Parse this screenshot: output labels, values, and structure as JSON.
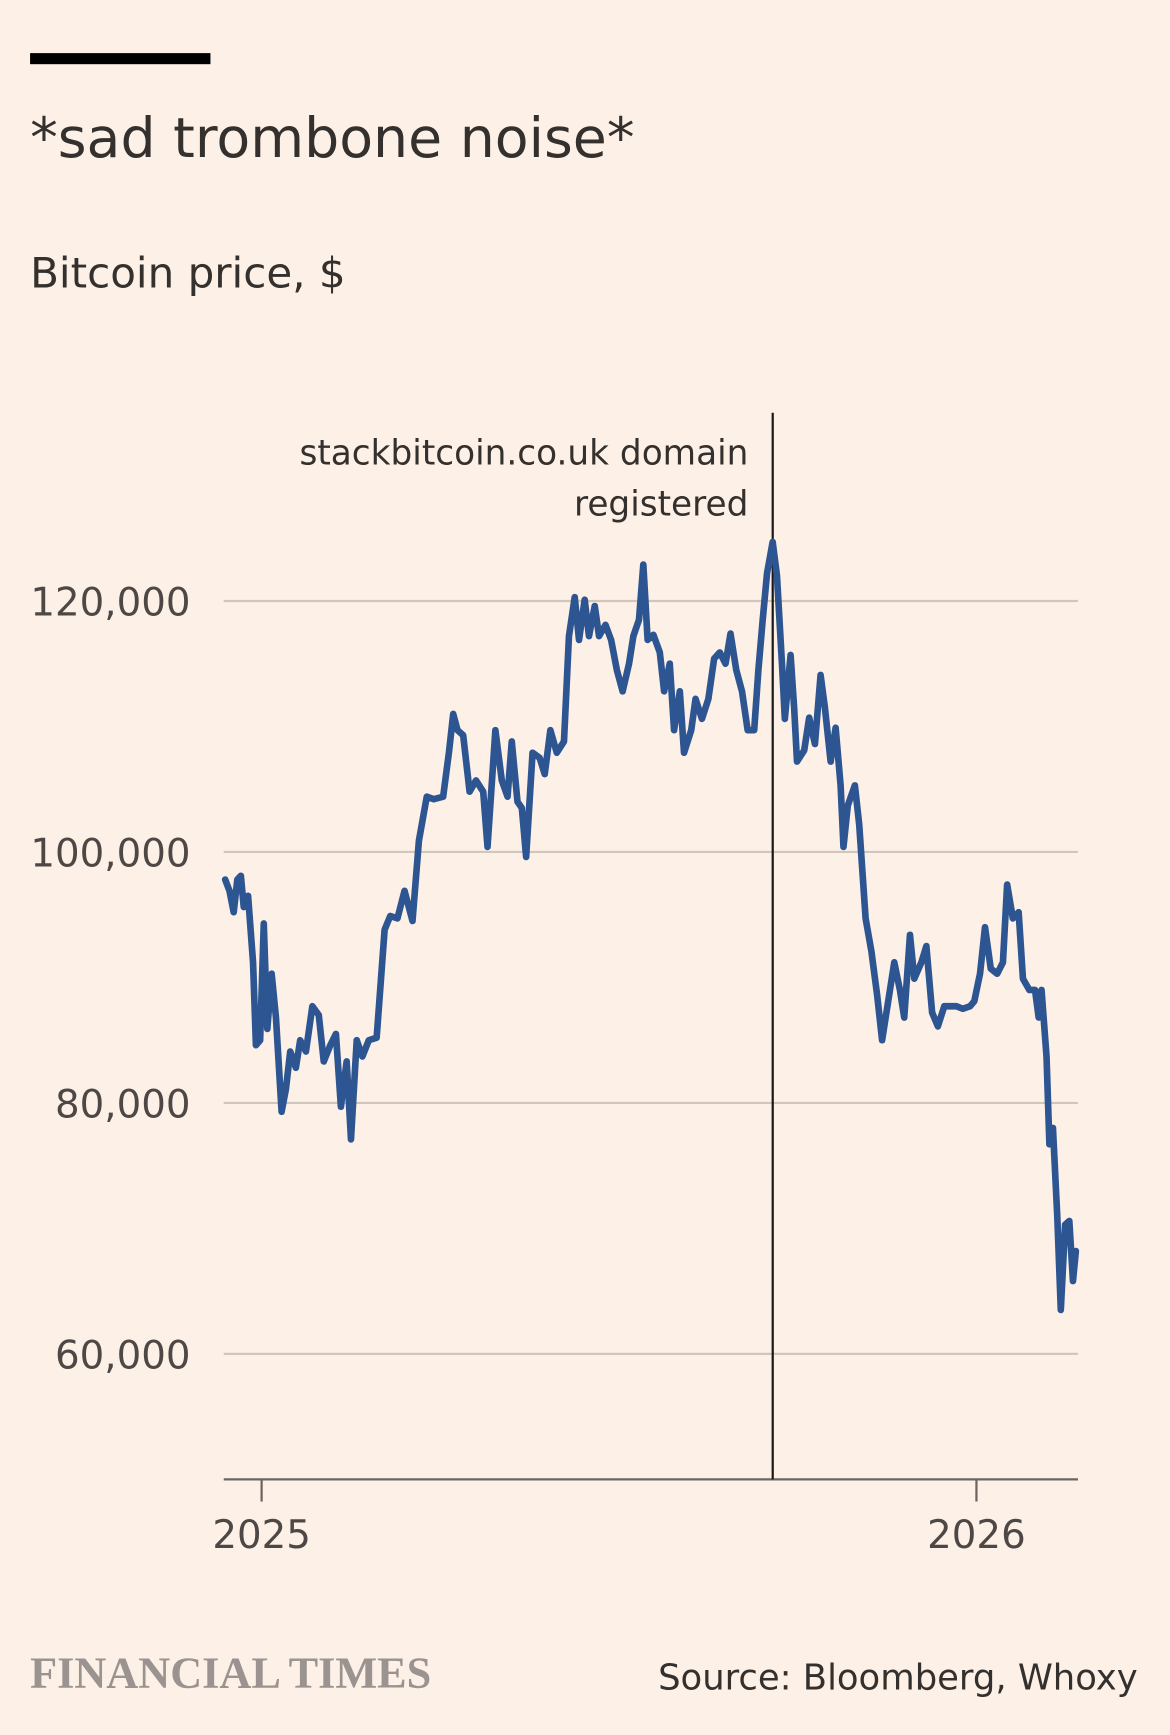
{
  "chart_data": {
    "type": "line",
    "title": "*sad trombone noise*",
    "subtitle": "Bitcoin price, $",
    "source": "Source: Bloomberg, Whoxy",
    "logo": "FINANCIAL TIMES",
    "color": "#2d5592",
    "grid": true,
    "xlim": [
      2024.947,
      2026.142
    ],
    "xticks": [
      2025,
      2026
    ],
    "ylim": [
      50000,
      135000
    ],
    "yticks": [
      {
        "value": 60000,
        "label": "60,000"
      },
      {
        "value": 80000,
        "label": "80,000"
      },
      {
        "value": 100000,
        "label": "100,000"
      },
      {
        "value": 120000,
        "label": "120,000"
      }
    ],
    "annotation": {
      "lines": [
        "stackbitcoin.co.uk domain",
        "registered"
      ],
      "x": 2025.715
    },
    "x": [
      2024.949,
      2024.955,
      2024.961,
      2024.966,
      2024.971,
      2024.975,
      2024.981,
      2024.988,
      2024.992,
      2024.998,
      2025.003,
      2025.008,
      2025.014,
      2025.02,
      2025.028,
      2025.034,
      2025.04,
      2025.048,
      2025.054,
      2025.062,
      2025.071,
      2025.08,
      2025.087,
      2025.096,
      2025.104,
      2025.111,
      2025.119,
      2025.125,
      2025.133,
      2025.141,
      2025.15,
      2025.161,
      2025.172,
      2025.18,
      2025.19,
      2025.2,
      2025.211,
      2025.22,
      2025.231,
      2025.241,
      2025.254,
      2025.262,
      2025.268,
      2025.274,
      2025.282,
      2025.291,
      2025.3,
      2025.31,
      2025.316,
      2025.327,
      2025.336,
      2025.344,
      2025.35,
      2025.358,
      2025.364,
      2025.37,
      2025.379,
      2025.389,
      2025.396,
      2025.404,
      2025.413,
      2025.423,
      2025.43,
      2025.438,
      2025.444,
      2025.452,
      2025.458,
      2025.466,
      2025.472,
      2025.481,
      2025.489,
      2025.497,
      2025.505,
      2025.514,
      2025.52,
      2025.528,
      2025.534,
      2025.54,
      2025.548,
      2025.557,
      2025.563,
      2025.571,
      2025.577,
      2025.585,
      2025.591,
      2025.601,
      2025.607,
      2025.616,
      2025.625,
      2025.633,
      2025.641,
      2025.649,
      2025.656,
      2025.664,
      2025.672,
      2025.68,
      2025.689,
      2025.695,
      2025.701,
      2025.707,
      2025.715,
      2025.721,
      2025.728,
      2025.732,
      2025.74,
      2025.745,
      2025.749,
      2025.759,
      2025.766,
      2025.774,
      2025.782,
      2025.788,
      2025.796,
      2025.803,
      2025.81,
      2025.814,
      2025.82,
      2025.83,
      2025.836,
      2025.845,
      2025.853,
      2025.861,
      2025.868,
      2025.878,
      2025.885,
      2025.893,
      2025.899,
      2025.907,
      2025.913,
      2025.923,
      2025.93,
      2025.938,
      2025.946,
      2025.955,
      2025.963,
      2025.972,
      2025.981,
      2025.991,
      2025.997,
      2026.005,
      2026.012,
      2026.02,
      2026.029,
      2026.037,
      2026.043,
      2026.051,
      2026.059,
      2026.065,
      2026.074,
      2026.082,
      2026.087,
      2026.091,
      2026.098,
      2026.102,
      2026.107,
      2026.113,
      2026.118,
      2026.124,
      2026.13,
      2026.135,
      2026.139
    ],
    "values": [
      97800,
      96900,
      95200,
      97800,
      98100,
      95600,
      96500,
      91200,
      84600,
      85000,
      94300,
      85900,
      90300,
      86800,
      79300,
      81100,
      84100,
      82800,
      85000,
      84100,
      87700,
      87000,
      83300,
      84600,
      85500,
      79700,
      83300,
      77100,
      85000,
      83700,
      85000,
      85200,
      93800,
      94900,
      94700,
      96900,
      94500,
      100900,
      104400,
      104200,
      104400,
      107900,
      111000,
      109700,
      109300,
      104800,
      105700,
      104800,
      100400,
      109700,
      105700,
      104400,
      108800,
      104000,
      103500,
      99600,
      107900,
      107500,
      106200,
      109700,
      107900,
      108800,
      117200,
      120300,
      116900,
      120100,
      117200,
      119600,
      117200,
      118100,
      116900,
      114500,
      112800,
      115000,
      117200,
      118500,
      122900,
      116900,
      117300,
      115900,
      112800,
      115000,
      109700,
      112800,
      107900,
      109700,
      112200,
      110600,
      112200,
      115400,
      115900,
      115000,
      117400,
      114500,
      112800,
      109700,
      109700,
      114500,
      118500,
      122200,
      124700,
      122000,
      115000,
      110600,
      115700,
      111500,
      107200,
      108100,
      110700,
      108600,
      114100,
      111500,
      107200,
      109900,
      105300,
      100400,
      103700,
      105300,
      102200,
      94700,
      92100,
      88600,
      85000,
      88600,
      91200,
      89000,
      86800,
      93400,
      89900,
      91200,
      92500,
      87200,
      86100,
      87700,
      87700,
      87700,
      87500,
      87700,
      88100,
      90300,
      94000,
      90700,
      90300,
      91200,
      97400,
      94700,
      95200,
      89900,
      89000,
      89000,
      86800,
      89000,
      83700,
      76700,
      78000,
      71000,
      63500,
      70300,
      70600,
      65800,
      68200
    ]
  }
}
